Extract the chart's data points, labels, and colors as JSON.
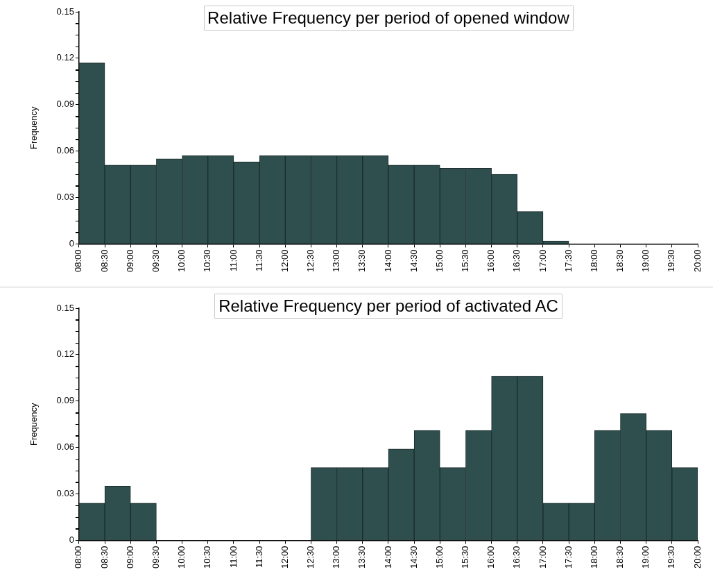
{
  "chart_data": [
    {
      "type": "histogram",
      "title": "Relative Frequency per period of opened window",
      "ylabel": "Frequency",
      "color": "#2f4f4f",
      "bins": [
        8,
        8.5,
        9,
        9.5,
        10,
        10.5,
        11,
        11.5,
        12,
        12.5,
        13,
        13.5,
        14,
        14.5,
        15,
        15.5,
        16,
        16.5,
        17,
        17.5,
        18,
        18.5,
        19,
        19.5,
        20
      ],
      "values": [
        0.117,
        0.051,
        0.051,
        0.055,
        0.057,
        0.057,
        0.053,
        0.057,
        0.057,
        0.057,
        0.057,
        0.057,
        0.051,
        0.051,
        0.049,
        0.049,
        0.045,
        0.021,
        0.002,
        0,
        0,
        0,
        0,
        0
      ],
      "xlim": [
        8,
        20
      ],
      "xticks": [
        {
          "value": 8,
          "label": "08:00"
        },
        {
          "value": 8.5,
          "label": "08:30"
        },
        {
          "value": 9,
          "label": "09:00"
        },
        {
          "value": 9.5,
          "label": "09:30"
        },
        {
          "value": 10,
          "label": "10:00"
        },
        {
          "value": 10.5,
          "label": "10:30"
        },
        {
          "value": 11,
          "label": "11:00"
        },
        {
          "value": 11.5,
          "label": "11:30"
        },
        {
          "value": 12,
          "label": "12:00"
        },
        {
          "value": 12.5,
          "label": "12:30"
        },
        {
          "value": 13,
          "label": "13:00"
        },
        {
          "value": 13.5,
          "label": "13:30"
        },
        {
          "value": 14,
          "label": "14:00"
        },
        {
          "value": 14.5,
          "label": "14:30"
        },
        {
          "value": 15,
          "label": "15:00"
        },
        {
          "value": 15.5,
          "label": "15:30"
        },
        {
          "value": 16,
          "label": "16:00"
        },
        {
          "value": 16.5,
          "label": "16:30"
        },
        {
          "value": 17,
          "label": "17:00"
        },
        {
          "value": 17.5,
          "label": "17:30"
        },
        {
          "value": 18,
          "label": "18:00"
        },
        {
          "value": 18.5,
          "label": "18:30"
        },
        {
          "value": 19,
          "label": "19:00"
        },
        {
          "value": 19.5,
          "label": "19:30"
        },
        {
          "value": 20,
          "label": "20:00"
        }
      ],
      "ylim": [
        0,
        0.15
      ],
      "yticks": [
        0,
        {
          "value": 0.0075,
          "label": null
        },
        {
          "value": 0.015,
          "label": null
        },
        {
          "value": 0.0225,
          "label": null
        },
        0.03,
        {
          "value": 0.0375,
          "label": null
        },
        {
          "value": 0.045,
          "label": null
        },
        {
          "value": 0.0525,
          "label": null
        },
        0.06,
        {
          "value": 0.0675,
          "label": null
        },
        {
          "value": 0.075,
          "label": null
        },
        {
          "value": 0.0825,
          "label": null
        },
        0.09,
        {
          "value": 0.0975,
          "label": null
        },
        {
          "value": 0.105,
          "label": null
        },
        {
          "value": 0.1125,
          "label": null
        },
        0.12,
        {
          "value": 0.1275,
          "label": null
        },
        {
          "value": 0.135,
          "label": null
        },
        {
          "value": 0.1425,
          "label": null
        },
        0.15
      ]
    },
    {
      "type": "histogram",
      "title": "Relative Frequency per period of activated AC",
      "ylabel": "Frequency",
      "color": "#2f4f4f",
      "bins": [
        8,
        8.5,
        9,
        9.5,
        10,
        10.5,
        11,
        11.5,
        12,
        12.5,
        13,
        13.5,
        14,
        14.5,
        15,
        15.5,
        16,
        16.5,
        17,
        17.5,
        18,
        18.5,
        19,
        19.5,
        20
      ],
      "values": [
        0.024,
        0.035,
        0.024,
        0,
        0,
        0,
        0,
        0,
        0,
        0.047,
        0.047,
        0.047,
        0.059,
        0.071,
        0.047,
        0.071,
        0.106,
        0.106,
        0.024,
        0.024,
        0.071,
        0.082,
        0.071,
        0.047
      ],
      "xlim": [
        8,
        20
      ],
      "xticks": [
        {
          "value": 8,
          "label": "08:00"
        },
        {
          "value": 8.5,
          "label": "08:30"
        },
        {
          "value": 9,
          "label": "09:00"
        },
        {
          "value": 9.5,
          "label": "09:30"
        },
        {
          "value": 10,
          "label": "10:00"
        },
        {
          "value": 10.5,
          "label": "10:30"
        },
        {
          "value": 11,
          "label": "11:00"
        },
        {
          "value": 11.5,
          "label": "11:30"
        },
        {
          "value": 12,
          "label": "12:00"
        },
        {
          "value": 12.5,
          "label": "12:30"
        },
        {
          "value": 13,
          "label": "13:00"
        },
        {
          "value": 13.5,
          "label": "13:30"
        },
        {
          "value": 14,
          "label": "14:00"
        },
        {
          "value": 14.5,
          "label": "14:30"
        },
        {
          "value": 15,
          "label": "15:00"
        },
        {
          "value": 15.5,
          "label": "15:30"
        },
        {
          "value": 16,
          "label": "16:00"
        },
        {
          "value": 16.5,
          "label": "16:30"
        },
        {
          "value": 17,
          "label": "17:00"
        },
        {
          "value": 17.5,
          "label": "17:30"
        },
        {
          "value": 18,
          "label": "18:00"
        },
        {
          "value": 18.5,
          "label": "18:30"
        },
        {
          "value": 19,
          "label": "19:00"
        },
        {
          "value": 19.5,
          "label": "19:30"
        },
        {
          "value": 20,
          "label": "20:00"
        }
      ],
      "ylim": [
        0,
        0.15
      ],
      "yticks": [
        0,
        {
          "value": 0.0075,
          "label": null
        },
        {
          "value": 0.015,
          "label": null
        },
        {
          "value": 0.0225,
          "label": null
        },
        0.03,
        {
          "value": 0.0375,
          "label": null
        },
        {
          "value": 0.045,
          "label": null
        },
        {
          "value": 0.0525,
          "label": null
        },
        0.06,
        {
          "value": 0.0675,
          "label": null
        },
        {
          "value": 0.075,
          "label": null
        },
        {
          "value": 0.0825,
          "label": null
        },
        0.09,
        {
          "value": 0.0975,
          "label": null
        },
        {
          "value": 0.105,
          "label": null
        },
        {
          "value": 0.1125,
          "label": null
        },
        0.12,
        {
          "value": 0.1275,
          "label": null
        },
        {
          "value": 0.135,
          "label": null
        },
        {
          "value": 0.1425,
          "label": null
        },
        0.15
      ]
    }
  ]
}
